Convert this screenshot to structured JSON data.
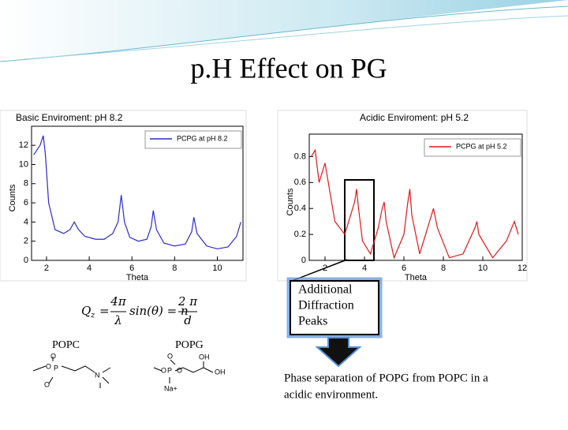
{
  "slide": {
    "title": "p.H Effect on PG",
    "plots": [
      {
        "type": "line",
        "title": "Basic Enviroment: pH 8.2",
        "x_label": "Theta",
        "y_label": "Counts",
        "series": [
          {
            "name": "PCPG at pH 8.2",
            "color": "#2a2ad0",
            "x": [
              1.4,
              1.7,
              1.85,
              1.95,
              2.1,
              2.4,
              2.8,
              3.1,
              3.3,
              3.5,
              3.8,
              4.3,
              4.7,
              5.1,
              5.35,
              5.5,
              5.65,
              5.9,
              6.3,
              6.7,
              6.9,
              7.0,
              7.15,
              7.5,
              8.0,
              8.5,
              8.8,
              8.9,
              9.05,
              9.5,
              10.0,
              10.5,
              10.9,
              11.1
            ],
            "values": [
              11,
              12,
              13,
              11,
              6,
              3.2,
              2.8,
              3.2,
              4,
              3.2,
              2.5,
              2.2,
              2.2,
              2.8,
              4,
              6.8,
              4,
              2.4,
              2,
              2.2,
              3.5,
              5.2,
              3.2,
              1.8,
              1.5,
              1.7,
              3,
              4.5,
              2.8,
              1.5,
              1.2,
              1.4,
              2.5,
              4
            ]
          }
        ],
        "xlim": [
          1.3,
          11.2
        ],
        "xticks": [
          2,
          4,
          6,
          8,
          10
        ],
        "ylim": [
          0,
          13
        ],
        "yticks": [
          0,
          2,
          4,
          6,
          8,
          10,
          12
        ]
      },
      {
        "type": "line",
        "title": "Acidic Enviroment: pH 5.2",
        "x_label": "Theta",
        "y_label": "Counts",
        "series": [
          {
            "name": "PCPG at pH 5.2",
            "color": "#e01818",
            "x": [
              1.3,
              1.5,
              1.7,
              2.0,
              2.5,
              3.0,
              3.3,
              3.5,
              3.6,
              3.7,
              3.9,
              4.3,
              4.7,
              4.9,
              5.0,
              5.1,
              5.5,
              6.0,
              6.2,
              6.3,
              6.4,
              6.8,
              7.3,
              7.5,
              7.7,
              8.3,
              9.0,
              9.6,
              9.7,
              9.8,
              10.5,
              11.2,
              11.6,
              11.8
            ],
            "values": [
              0.8,
              0.85,
              0.6,
              0.75,
              0.3,
              0.2,
              0.35,
              0.45,
              0.55,
              0.4,
              0.15,
              0.05,
              0.25,
              0.4,
              0.45,
              0.3,
              0.02,
              0.2,
              0.45,
              0.55,
              0.35,
              0.05,
              0.3,
              0.4,
              0.25,
              0.02,
              0.05,
              0.25,
              0.3,
              0.2,
              0.02,
              0.15,
              0.3,
              0.2
            ]
          }
        ],
        "xlim": [
          1.2,
          12
        ],
        "xticks": [
          2,
          4,
          6,
          8,
          10,
          12
        ],
        "ylim": [
          0,
          0.9
        ],
        "yticks": [
          0,
          0.2,
          0.4,
          0.6,
          0.8
        ]
      }
    ],
    "callout": [
      "Additional",
      "Diffraction",
      "Peaks"
    ],
    "equation": {
      "lhs": "Q",
      "sub": "z",
      "eq1": "=",
      "f1_num": "4π",
      "f1_den": "λ",
      "mid": "sin(θ) = n",
      "f2_num": "2 π",
      "f2_den": "d"
    },
    "molecules": {
      "popc": "POPC",
      "popg": "POPG",
      "popc_atoms": [
        "O",
        "P",
        "O",
        "O",
        "N"
      ],
      "popg_atoms": [
        "O",
        "P",
        "O",
        "O",
        "OH",
        "OH",
        "Na+"
      ]
    },
    "conclusion": [
      "Phase separation of POPG from POPC in a",
      "acidic environment."
    ]
  }
}
